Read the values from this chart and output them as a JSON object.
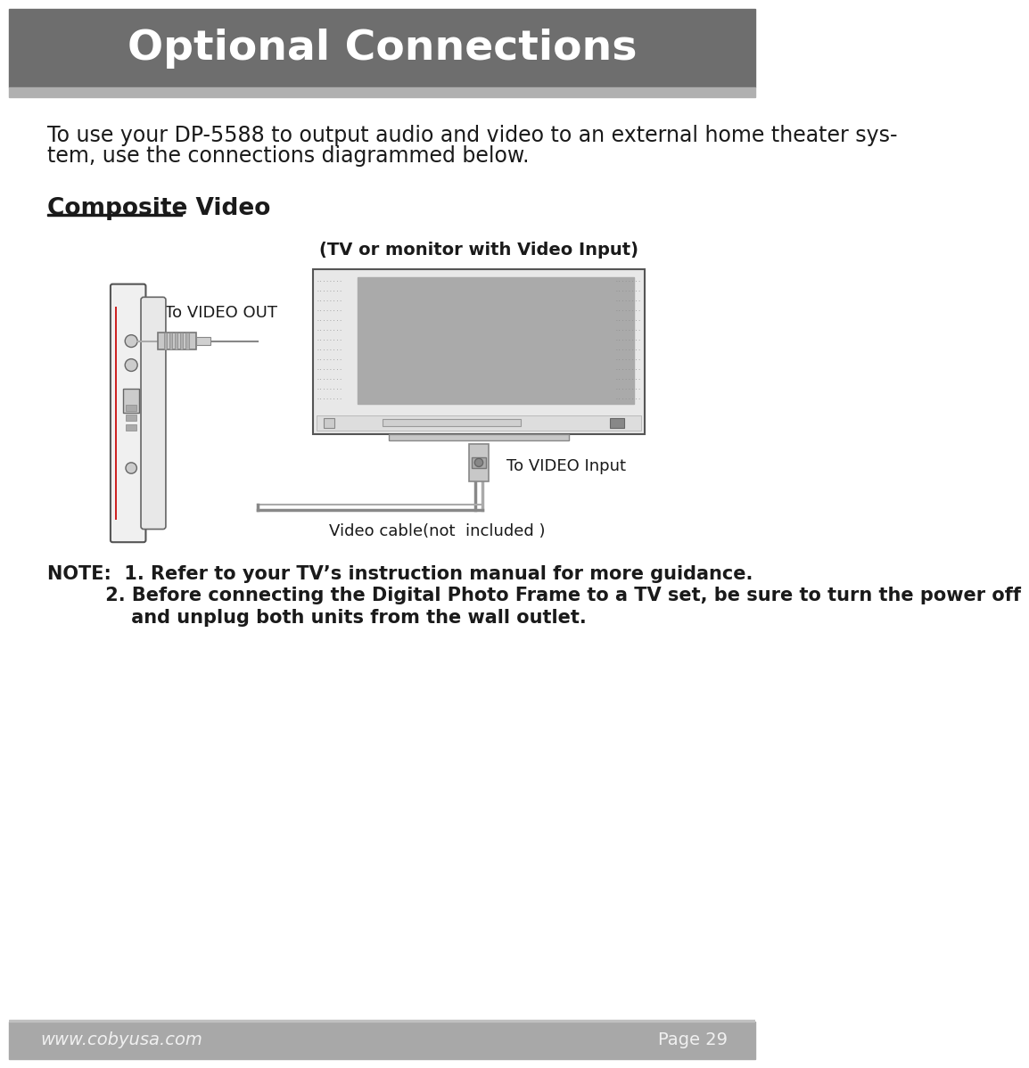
{
  "title": "Optional Connections",
  "header_bg": "#6e6e6e",
  "header_stripe_bg": "#b0b0b0",
  "footer_bg": "#a8a8a8",
  "page_bg": "#ffffff",
  "title_color": "#ffffff",
  "title_fontsize": 34,
  "body_text_line1": "To use your DP-5588 to output audio and video to an external home theater sys-",
  "body_text_line2": "tem, use the connections diagrammed below.",
  "body_fontsize": 17,
  "section_title": "Composite Video",
  "section_fontsize": 19,
  "tv_label": "(TV or monitor with Video Input)",
  "tv_label_fontsize": 14,
  "video_out_label": "To VIDEO OUT",
  "video_out_fontsize": 13,
  "video_in_label": "To VIDEO Input",
  "video_in_fontsize": 13,
  "cable_label": "Video cable(not  included )",
  "cable_label_fontsize": 13,
  "note_line1": "NOTE:  1. Refer to your TV’s instruction manual for more guidance.",
  "note_line2": "         2. Before connecting the Digital Photo Frame to a TV set, be sure to turn the power off",
  "note_line3": "             and unplug both units from the wall outlet.",
  "note_fontsize": 15,
  "footer_left": "www.cobyusa.com",
  "footer_right": "Page 29",
  "footer_fontsize": 14,
  "text_color": "#1a1a1a"
}
